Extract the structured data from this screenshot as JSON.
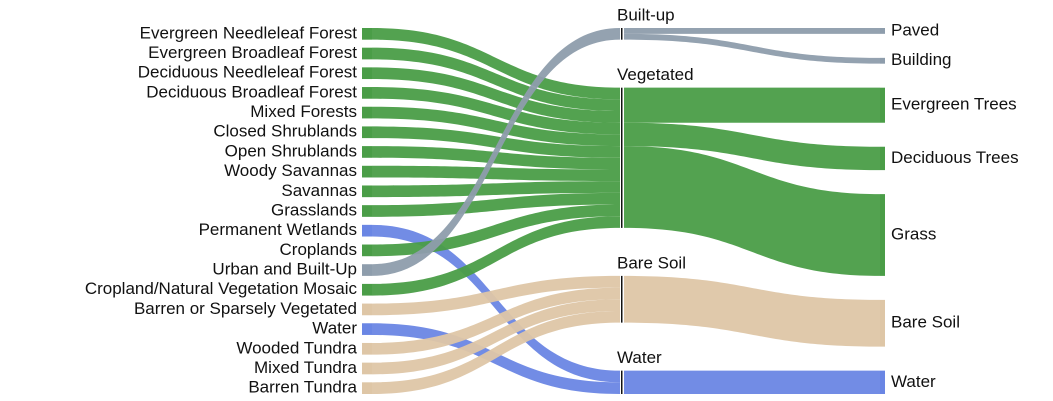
{
  "chart_data": {
    "type": "sankey",
    "nodes": [
      {
        "name": "Evergreen Needleleaf Forest",
        "column": 0
      },
      {
        "name": "Evergreen Broadleaf Forest",
        "column": 0
      },
      {
        "name": "Deciduous Needleleaf Forest",
        "column": 0
      },
      {
        "name": "Deciduous Broadleaf Forest",
        "column": 0
      },
      {
        "name": "Mixed Forests",
        "column": 0
      },
      {
        "name": "Closed Shrublands",
        "column": 0
      },
      {
        "name": "Open Shrublands",
        "column": 0
      },
      {
        "name": "Woody Savannas",
        "column": 0
      },
      {
        "name": "Savannas",
        "column": 0
      },
      {
        "name": "Grasslands",
        "column": 0
      },
      {
        "name": "Permanent Wetlands",
        "column": 0
      },
      {
        "name": "Croplands",
        "column": 0
      },
      {
        "name": "Urban and Built-Up",
        "column": 0
      },
      {
        "name": "Cropland/Natural Vegetation Mosaic",
        "column": 0
      },
      {
        "name": "Barren or Sparsely Vegetated",
        "column": 0
      },
      {
        "name": "Water",
        "column": 0
      },
      {
        "name": "Wooded Tundra",
        "column": 0
      },
      {
        "name": "Mixed Tundra",
        "column": 0
      },
      {
        "name": "Barren Tundra",
        "column": 0
      },
      {
        "name": "Built-up",
        "column": 1
      },
      {
        "name": "Vegetated",
        "column": 1
      },
      {
        "name": "Bare Soil",
        "column": 1
      },
      {
        "name": "Water",
        "column": 1
      },
      {
        "name": "Paved",
        "column": 2
      },
      {
        "name": "Building",
        "column": 2
      },
      {
        "name": "Evergreen Trees",
        "column": 2
      },
      {
        "name": "Deciduous Trees",
        "column": 2
      },
      {
        "name": "Grass",
        "column": 2
      },
      {
        "name": "Bare Soil",
        "column": 2
      },
      {
        "name": "Water",
        "column": 2
      }
    ],
    "links": [
      {
        "source": 0,
        "target": 20,
        "value": 1,
        "color": "#4a9d47"
      },
      {
        "source": 1,
        "target": 20,
        "value": 1,
        "color": "#4a9d47"
      },
      {
        "source": 2,
        "target": 20,
        "value": 1,
        "color": "#4a9d47"
      },
      {
        "source": 3,
        "target": 20,
        "value": 1,
        "color": "#4a9d47"
      },
      {
        "source": 4,
        "target": 20,
        "value": 1,
        "color": "#4a9d47"
      },
      {
        "source": 5,
        "target": 20,
        "value": 1,
        "color": "#4a9d47"
      },
      {
        "source": 6,
        "target": 20,
        "value": 1,
        "color": "#4a9d47"
      },
      {
        "source": 7,
        "target": 20,
        "value": 1,
        "color": "#4a9d47"
      },
      {
        "source": 8,
        "target": 20,
        "value": 1,
        "color": "#4a9d47"
      },
      {
        "source": 9,
        "target": 20,
        "value": 1,
        "color": "#4a9d47"
      },
      {
        "source": 10,
        "target": 22,
        "value": 1,
        "color": "#6a86e4"
      },
      {
        "source": 11,
        "target": 20,
        "value": 1,
        "color": "#4a9d47"
      },
      {
        "source": 12,
        "target": 19,
        "value": 1,
        "color": "#8e9dac"
      },
      {
        "source": 13,
        "target": 20,
        "value": 1,
        "color": "#4a9d47"
      },
      {
        "source": 14,
        "target": 21,
        "value": 1,
        "color": "#dec6a6"
      },
      {
        "source": 15,
        "target": 22,
        "value": 1,
        "color": "#6a86e4"
      },
      {
        "source": 16,
        "target": 21,
        "value": 1,
        "color": "#dec6a6"
      },
      {
        "source": 17,
        "target": 21,
        "value": 1,
        "color": "#dec6a6"
      },
      {
        "source": 18,
        "target": 21,
        "value": 1,
        "color": "#dec6a6"
      },
      {
        "source": 19,
        "target": 23,
        "value": 0.5,
        "color": "#8e9dac"
      },
      {
        "source": 19,
        "target": 24,
        "value": 0.5,
        "color": "#8e9dac"
      },
      {
        "source": 20,
        "target": 25,
        "value": 3,
        "color": "#4a9d47"
      },
      {
        "source": 20,
        "target": 26,
        "value": 2,
        "color": "#4a9d47"
      },
      {
        "source": 20,
        "target": 27,
        "value": 7,
        "color": "#4a9d47"
      },
      {
        "source": 21,
        "target": 28,
        "value": 4,
        "color": "#dec6a6"
      },
      {
        "source": 22,
        "target": 29,
        "value": 2,
        "color": "#6a86e4"
      }
    ]
  }
}
